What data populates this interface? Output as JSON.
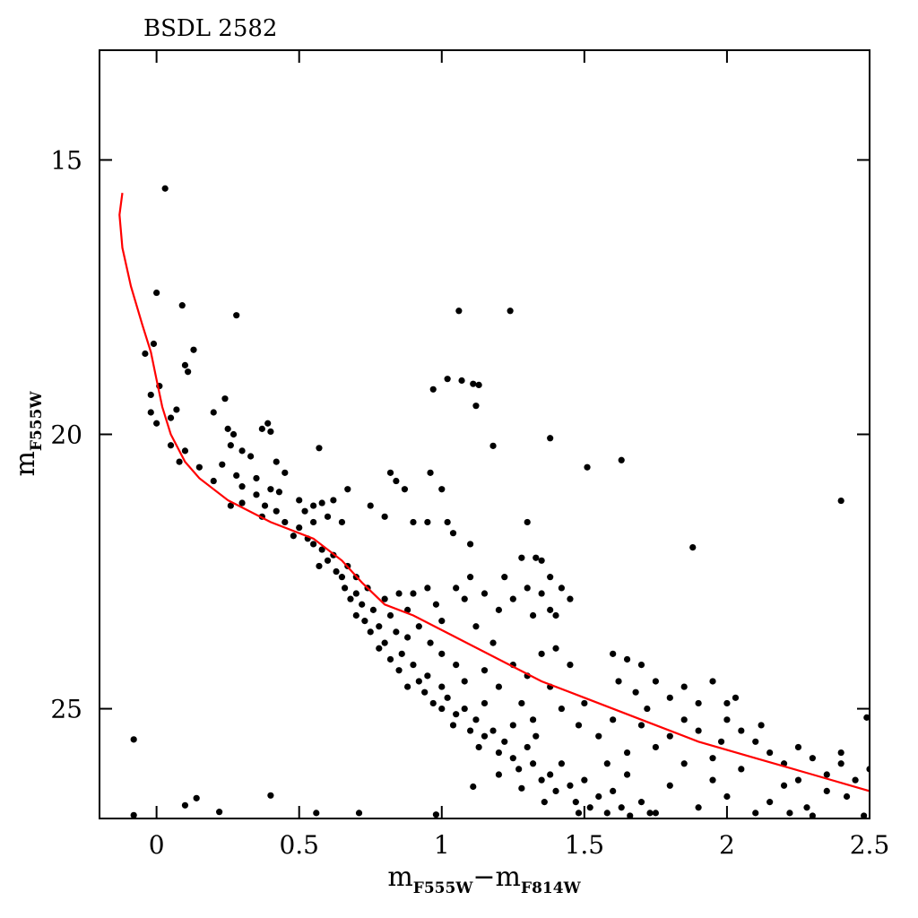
{
  "chart_data": {
    "type": "scatter",
    "title": "BSDL 2582",
    "x_label": [
      "m",
      "F555W",
      "−m",
      "F814W"
    ],
    "y_label": [
      "m",
      "F555W"
    ],
    "xlim": [
      -0.2,
      2.5
    ],
    "ylim": [
      13,
      27
    ],
    "y_inverted": true,
    "xticks": [
      0,
      0.5,
      1,
      1.5,
      2,
      2.5
    ],
    "yticks": [
      15,
      20,
      25
    ],
    "color": "#000000",
    "x": [
      0.03,
      0.0,
      0.09,
      0.28,
      1.06,
      1.24,
      -0.01,
      0.13,
      -0.04,
      0.1,
      0.11,
      0.01,
      1.02,
      1.07,
      0.97,
      1.11,
      1.13,
      1.12,
      0.24,
      -0.02,
      1.38,
      1.18,
      1.63,
      1.51,
      0.57,
      2.4,
      1.88,
      -0.08,
      2.49,
      0.4,
      0.14,
      0.1,
      0.22,
      -0.08,
      0.56,
      0.71,
      0.98,
      1.11,
      0.07,
      0.05,
      -0.02,
      0.0,
      0.05,
      0.1,
      0.08,
      0.15,
      0.2,
      0.25,
      0.27,
      0.3,
      0.26,
      0.2,
      0.23,
      0.28,
      0.3,
      0.33,
      0.37,
      0.39,
      0.4,
      0.42,
      0.45,
      0.4,
      0.43,
      0.35,
      0.26,
      0.3,
      0.35,
      0.38,
      0.37,
      0.42,
      0.45,
      0.5,
      0.52,
      0.55,
      0.58,
      0.62,
      0.6,
      0.65,
      0.67,
      0.75,
      0.8,
      0.82,
      0.84,
      0.87,
      0.9,
      0.95,
      0.96,
      1.0,
      1.02,
      1.04,
      1.3,
      0.5,
      0.53,
      0.48,
      0.55,
      0.55,
      0.58,
      0.6,
      0.62,
      0.57,
      0.63,
      0.65,
      0.67,
      0.66,
      0.7,
      0.68,
      0.7,
      0.72,
      0.74,
      0.7,
      0.73,
      0.76,
      0.75,
      0.78,
      0.8,
      0.82,
      0.8,
      0.84,
      0.78,
      0.82,
      0.86,
      0.88,
      0.85,
      0.9,
      0.92,
      0.88,
      0.95,
      0.94,
      0.97,
      1.0,
      1.0,
      1.02,
      1.05,
      1.04,
      1.08,
      1.1,
      1.12,
      1.15,
      1.13,
      1.18,
      1.2,
      1.22,
      1.25,
      1.27,
      1.3,
      1.32,
      1.35,
      1.33,
      1.38,
      1.4,
      1.42,
      1.45,
      1.47,
      1.5,
      1.52,
      1.55,
      1.58,
      1.6,
      1.63,
      1.66,
      1.7,
      1.73,
      1.48,
      1.36,
      1.28,
      1.2,
      1.25,
      1.15,
      1.08,
      1.05,
      1.0,
      0.96,
      0.92,
      0.88,
      0.85,
      1.05,
      1.08,
      1.1,
      1.15,
      1.2,
      1.22,
      1.25,
      1.3,
      1.32,
      1.35,
      1.38,
      1.4,
      1.42,
      1.45,
      1.35,
      1.38,
      1.28,
      1.33,
      1.1,
      0.95,
      0.9,
      0.98,
      1.0,
      1.12,
      1.18,
      1.25,
      1.3,
      1.35,
      1.4,
      1.45,
      1.38,
      1.28,
      1.2,
      1.15,
      1.32,
      1.42,
      1.48,
      1.5,
      1.6,
      1.65,
      1.7,
      1.62,
      1.68,
      1.75,
      1.8,
      1.85,
      1.9,
      1.95,
      2.03,
      2.0,
      1.9,
      1.8,
      1.7,
      1.6,
      1.55,
      1.65,
      1.75,
      1.85,
      1.95,
      2.05,
      2.1,
      2.15,
      2.2,
      2.25,
      2.3,
      2.35,
      2.4,
      2.45,
      2.5,
      2.42,
      2.35,
      2.28,
      2.2,
      2.15,
      2.1,
      2.0,
      1.95,
      1.9,
      1.8,
      1.75,
      1.65,
      1.58,
      2.48,
      2.3,
      2.22,
      2.05,
      1.98,
      2.12,
      2.25,
      2.4,
      2.0,
      1.85,
      1.72
    ],
    "values": [
      15.52,
      17.42,
      17.65,
      17.83,
      17.75,
      17.75,
      18.35,
      18.46,
      18.53,
      18.74,
      18.86,
      19.12,
      18.99,
      19.02,
      19.18,
      19.08,
      19.1,
      19.48,
      19.35,
      19.28,
      20.07,
      20.21,
      20.47,
      20.6,
      20.25,
      21.21,
      22.06,
      25.56,
      25.16,
      26.58,
      26.63,
      26.76,
      26.88,
      26.94,
      26.9,
      26.9,
      26.93,
      26.42,
      19.55,
      19.7,
      19.6,
      19.8,
      20.2,
      20.3,
      20.5,
      20.6,
      19.6,
      19.9,
      20.0,
      20.3,
      20.2,
      20.85,
      20.55,
      20.75,
      20.95,
      20.4,
      19.9,
      19.8,
      19.95,
      20.5,
      20.7,
      21.0,
      21.05,
      20.8,
      21.3,
      21.25,
      21.1,
      21.3,
      21.5,
      21.4,
      21.6,
      21.2,
      21.4,
      21.3,
      21.25,
      21.2,
      21.5,
      21.6,
      21.0,
      21.3,
      21.5,
      20.7,
      20.85,
      21.0,
      21.6,
      21.6,
      20.7,
      21.0,
      21.6,
      21.8,
      21.6,
      21.7,
      21.9,
      21.85,
      21.6,
      22.0,
      22.1,
      22.3,
      22.2,
      22.4,
      22.5,
      22.6,
      22.4,
      22.8,
      22.6,
      23.0,
      22.9,
      23.1,
      22.8,
      23.3,
      23.4,
      23.2,
      23.6,
      23.5,
      23.0,
      23.3,
      23.8,
      23.6,
      23.9,
      24.1,
      24.0,
      23.7,
      24.3,
      24.2,
      24.5,
      24.6,
      24.4,
      24.7,
      24.9,
      24.6,
      25.0,
      24.8,
      25.1,
      25.3,
      25.0,
      25.4,
      25.2,
      25.5,
      25.7,
      25.4,
      25.8,
      25.6,
      25.9,
      26.1,
      25.7,
      26.0,
      26.3,
      25.5,
      26.2,
      26.5,
      26.0,
      26.4,
      26.7,
      26.3,
      26.8,
      26.6,
      26.9,
      26.5,
      26.8,
      26.95,
      26.7,
      26.9,
      26.9,
      26.7,
      26.45,
      26.2,
      25.3,
      24.9,
      24.5,
      24.2,
      24.0,
      23.8,
      23.5,
      23.2,
      22.9,
      22.8,
      23.0,
      22.6,
      22.9,
      23.2,
      22.6,
      23.0,
      22.8,
      23.3,
      22.9,
      23.2,
      23.3,
      22.8,
      23.0,
      22.3,
      22.6,
      22.25,
      22.25,
      22.0,
      22.8,
      22.9,
      23.1,
      23.4,
      23.5,
      23.8,
      24.2,
      24.4,
      24.0,
      23.9,
      24.2,
      24.6,
      24.9,
      24.6,
      24.3,
      25.2,
      25.0,
      25.3,
      24.9,
      24.0,
      24.1,
      24.2,
      24.5,
      24.7,
      24.5,
      24.8,
      24.6,
      24.9,
      24.5,
      24.8,
      25.2,
      25.4,
      25.5,
      25.3,
      25.2,
      25.5,
      25.8,
      25.7,
      26.0,
      25.9,
      26.1,
      25.6,
      25.8,
      26.0,
      25.7,
      25.9,
      26.2,
      26.0,
      26.3,
      26.1,
      26.6,
      26.5,
      26.8,
      26.4,
      26.7,
      26.9,
      26.6,
      26.3,
      26.8,
      26.4,
      26.9,
      26.2,
      26.0,
      26.95,
      26.95,
      26.9,
      25.4,
      25.6,
      25.3,
      26.3,
      25.8,
      24.9,
      25.2,
      25.0
    ],
    "isochrone": {
      "color": "#ff0000",
      "x": [
        -0.12,
        -0.13,
        -0.12,
        -0.09,
        -0.05,
        -0.02,
        0.0,
        0.02,
        0.05,
        0.1,
        0.15,
        0.25,
        0.4,
        0.55,
        0.65,
        0.72,
        0.8,
        0.9,
        1.05,
        1.2,
        1.35,
        1.5,
        1.7,
        1.9,
        2.1,
        2.3,
        2.5
      ],
      "values": [
        15.6,
        16.0,
        16.6,
        17.3,
        18.0,
        18.5,
        19.0,
        19.5,
        20.0,
        20.5,
        20.8,
        21.2,
        21.6,
        21.9,
        22.3,
        22.7,
        23.1,
        23.3,
        23.7,
        24.1,
        24.5,
        24.8,
        25.2,
        25.6,
        25.9,
        26.2,
        26.5
      ]
    }
  }
}
